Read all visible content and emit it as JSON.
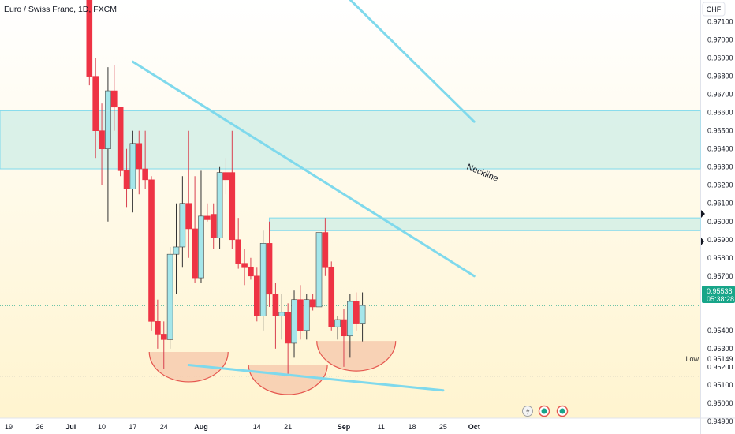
{
  "symbol_title": "Euro / Swiss Franc, 1D, FXCM",
  "currency": "CHF",
  "neckline_label": "Neckline",
  "low_label": "Low",
  "low_value": "0.95149",
  "last_price": "0.95538",
  "countdown": "05:38:28",
  "colors": {
    "up": "#a5e6ea",
    "down": "#ee3344",
    "wick_down": "#d9404f",
    "wick_up": "#333333",
    "trendline": "#7fd9ec",
    "zone_fill": "#cdeee6",
    "zone_border": "#7fd9ec",
    "arc_fill": "#f6c9ad",
    "arc_stroke": "#e5574f",
    "price_tag": "#17a589",
    "bg_top": "#ffffff",
    "bg_bottom": "#fff4cf"
  },
  "chart_data": {
    "type": "candlestick",
    "title": "Euro / Swiss Franc, 1D, FXCM",
    "y_unit": "CHF",
    "y_ticks": [
      "0.97100",
      "0.97000",
      "0.96900",
      "0.96800",
      "0.96700",
      "0.96600",
      "0.96500",
      "0.96400",
      "0.96300",
      "0.96200",
      "0.96100",
      "0.96000",
      "0.95900",
      "0.95800",
      "0.95700",
      "0.95600",
      "0.95400",
      "0.95300",
      "0.95200",
      "0.95100",
      "0.95000",
      "0.94900"
    ],
    "ylim": [
      0.9483,
      0.9722
    ],
    "x_ticks": [
      "19",
      "26",
      "Jul",
      "10",
      "17",
      "24",
      "Aug",
      "14",
      "21",
      "Sep",
      "11",
      "18",
      "25",
      "Oct"
    ],
    "candles": [
      {
        "date": "Jul 6",
        "open": 0.975,
        "high": 0.975,
        "low": 0.9675,
        "close": 0.968
      },
      {
        "date": "Jul 7",
        "open": 0.968,
        "high": 0.969,
        "low": 0.9635,
        "close": 0.965
      },
      {
        "date": "Jul 10",
        "open": 0.965,
        "high": 0.9665,
        "low": 0.962,
        "close": 0.964
      },
      {
        "date": "Jul 11",
        "open": 0.964,
        "high": 0.9685,
        "low": 0.96,
        "close": 0.9672
      },
      {
        "date": "Jul 12",
        "open": 0.9672,
        "high": 0.9686,
        "low": 0.965,
        "close": 0.9663
      },
      {
        "date": "Jul 13",
        "open": 0.9663,
        "high": 0.9663,
        "low": 0.9625,
        "close": 0.9628
      },
      {
        "date": "Jul 14",
        "open": 0.9628,
        "high": 0.964,
        "low": 0.9608,
        "close": 0.9618
      },
      {
        "date": "Jul 17",
        "open": 0.9618,
        "high": 0.965,
        "low": 0.9605,
        "close": 0.9643
      },
      {
        "date": "Jul 18",
        "open": 0.9643,
        "high": 0.965,
        "low": 0.9615,
        "close": 0.9629
      },
      {
        "date": "Jul 19",
        "open": 0.9629,
        "high": 0.965,
        "low": 0.9618,
        "close": 0.9623
      },
      {
        "date": "Jul 20",
        "open": 0.9623,
        "high": 0.9625,
        "low": 0.954,
        "close": 0.9545
      },
      {
        "date": "Jul 21",
        "open": 0.9545,
        "high": 0.9557,
        "low": 0.953,
        "close": 0.9538
      },
      {
        "date": "Jul 24",
        "open": 0.9538,
        "high": 0.9545,
        "low": 0.9519,
        "close": 0.9535
      },
      {
        "date": "Jul 25",
        "open": 0.9535,
        "high": 0.9586,
        "low": 0.953,
        "close": 0.9582
      },
      {
        "date": "Jul 26",
        "open": 0.9582,
        "high": 0.961,
        "low": 0.956,
        "close": 0.9586
      },
      {
        "date": "Jul 27",
        "open": 0.9586,
        "high": 0.9625,
        "low": 0.9575,
        "close": 0.961
      },
      {
        "date": "Jul 28",
        "open": 0.961,
        "high": 0.965,
        "low": 0.958,
        "close": 0.9596
      },
      {
        "date": "Jul 31",
        "open": 0.9596,
        "high": 0.9625,
        "low": 0.9566,
        "close": 0.9569
      },
      {
        "date": "Aug 1",
        "open": 0.9569,
        "high": 0.9628,
        "low": 0.9566,
        "close": 0.9603
      },
      {
        "date": "Aug 2",
        "open": 0.9603,
        "high": 0.961,
        "low": 0.96,
        "close": 0.9601
      },
      {
        "date": "Aug 3",
        "open": 0.9604,
        "high": 0.961,
        "low": 0.9585,
        "close": 0.9591
      },
      {
        "date": "Aug 4",
        "open": 0.9591,
        "high": 0.963,
        "low": 0.9585,
        "close": 0.9627
      },
      {
        "date": "Aug 7",
        "open": 0.9627,
        "high": 0.9635,
        "low": 0.9615,
        "close": 0.9623
      },
      {
        "date": "Aug 8",
        "open": 0.9627,
        "high": 0.965,
        "low": 0.9585,
        "close": 0.959
      },
      {
        "date": "Aug 9",
        "open": 0.959,
        "high": 0.9602,
        "low": 0.9574,
        "close": 0.9577
      },
      {
        "date": "Aug 10",
        "open": 0.9577,
        "high": 0.9585,
        "low": 0.9565,
        "close": 0.9575
      },
      {
        "date": "Aug 11",
        "open": 0.9575,
        "high": 0.958,
        "low": 0.9568,
        "close": 0.957
      },
      {
        "date": "Aug 14",
        "open": 0.957,
        "high": 0.9575,
        "low": 0.9545,
        "close": 0.9548
      },
      {
        "date": "Aug 15",
        "open": 0.9548,
        "high": 0.9595,
        "low": 0.954,
        "close": 0.9588
      },
      {
        "date": "Aug 16",
        "open": 0.9588,
        "high": 0.96,
        "low": 0.9553,
        "close": 0.956
      },
      {
        "date": "Aug 17",
        "open": 0.956,
        "high": 0.9566,
        "low": 0.953,
        "close": 0.9548
      },
      {
        "date": "Aug 18",
        "open": 0.9548,
        "high": 0.956,
        "low": 0.9535,
        "close": 0.955
      },
      {
        "date": "Aug 21",
        "open": 0.955,
        "high": 0.9555,
        "low": 0.9515,
        "close": 0.9533
      },
      {
        "date": "Aug 22",
        "open": 0.9533,
        "high": 0.9562,
        "low": 0.9525,
        "close": 0.9557
      },
      {
        "date": "Aug 23",
        "open": 0.9557,
        "high": 0.9565,
        "low": 0.9535,
        "close": 0.954
      },
      {
        "date": "Aug 24",
        "open": 0.954,
        "high": 0.956,
        "low": 0.9535,
        "close": 0.9557
      },
      {
        "date": "Aug 25",
        "open": 0.9557,
        "high": 0.956,
        "low": 0.9551,
        "close": 0.9553
      },
      {
        "date": "Aug 28",
        "open": 0.9553,
        "high": 0.9597,
        "low": 0.9548,
        "close": 0.9594
      },
      {
        "date": "Aug 29",
        "open": 0.9594,
        "high": 0.9602,
        "low": 0.957,
        "close": 0.9575
      },
      {
        "date": "Aug 30",
        "open": 0.9575,
        "high": 0.9578,
        "low": 0.954,
        "close": 0.9542
      },
      {
        "date": "Aug 31",
        "open": 0.9542,
        "high": 0.9548,
        "low": 0.9535,
        "close": 0.9546
      },
      {
        "date": "Sep 1",
        "open": 0.9546,
        "high": 0.9552,
        "low": 0.952,
        "close": 0.9537
      },
      {
        "date": "Sep 4",
        "open": 0.9537,
        "high": 0.956,
        "low": 0.9525,
        "close": 0.9556
      },
      {
        "date": "Sep 5",
        "open": 0.9556,
        "high": 0.9561,
        "low": 0.954,
        "close": 0.9544
      },
      {
        "date": "Sep 6",
        "open": 0.9544,
        "high": 0.9561,
        "low": 0.9534,
        "close": 0.95538
      }
    ],
    "horizontal_levels": [
      {
        "label": "Low",
        "value": 0.95149
      },
      {
        "label": "last",
        "value": 0.95538
      }
    ],
    "zones": [
      {
        "from": 0.9629,
        "to": 0.9661
      },
      {
        "from": 0.9595,
        "to": 0.9602
      }
    ],
    "trendlines": [
      {
        "from": {
          "date": "Jul 17",
          "price": 0.9688
        },
        "to": {
          "date": "Oct 2",
          "price": 0.957
        },
        "label": "Neckline"
      },
      {
        "from": {
          "date": "Jul 28",
          "price": 0.9521
        },
        "to": {
          "date": "Sep 25",
          "price": 0.9507
        }
      },
      {
        "from": {
          "date": "Aug 27",
          "price": 0.9739
        },
        "to": {
          "date": "Oct 2",
          "price": 0.9655
        }
      }
    ],
    "arcs": [
      {
        "center_date": "Jul 28",
        "center_price": 0.9523
      },
      {
        "center_date": "Aug 21",
        "center_price": 0.9516
      },
      {
        "center_date": "Sep 5",
        "center_price": 0.9529
      }
    ]
  }
}
